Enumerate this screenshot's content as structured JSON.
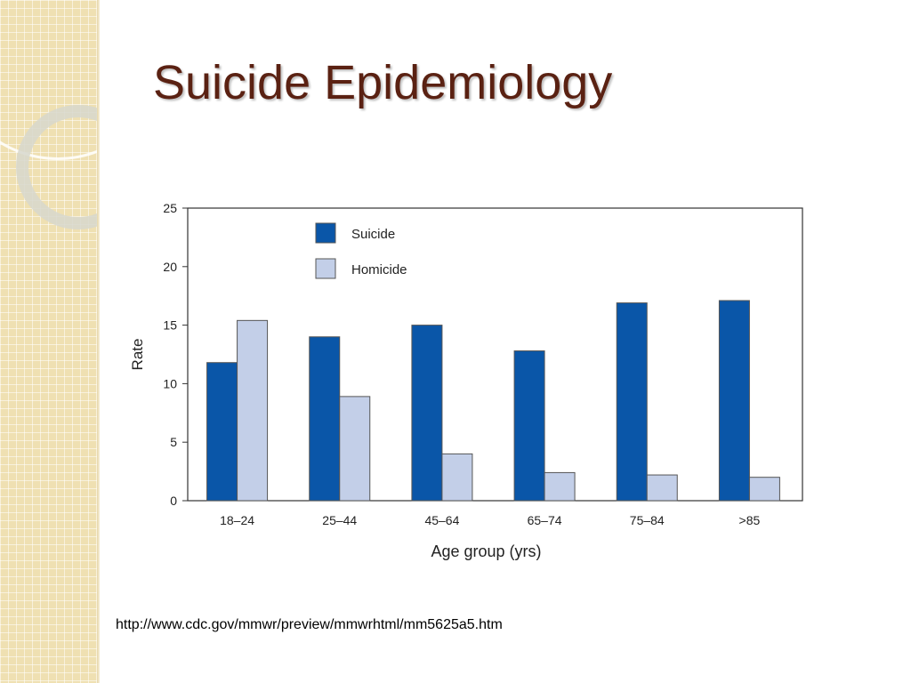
{
  "slide": {
    "title": "Suicide Epidemiology",
    "source_url": "http://www.cdc.gov/mmwr/preview/mmwrhtml/mm5625a5.htm"
  },
  "colors": {
    "title": "#5a2112",
    "suicide": "#0a56a8",
    "homicide": "#c3cfe8",
    "strip": "#efe0b2"
  },
  "chart_data": {
    "type": "bar",
    "xlabel": "Age group (yrs)",
    "ylabel": "Rate",
    "ylim": [
      0,
      25
    ],
    "yticks": [
      "0",
      "5",
      "10",
      "15",
      "20",
      "25"
    ],
    "categories": [
      "18–24",
      "25–44",
      "45–64",
      "65–74",
      "75–84",
      ">85"
    ],
    "series": [
      {
        "name": "Suicide",
        "values": [
          11.8,
          14.0,
          15.0,
          12.8,
          16.9,
          17.1
        ]
      },
      {
        "name": "Homicide",
        "values": [
          15.4,
          8.9,
          4.0,
          2.4,
          2.2,
          2.0
        ]
      }
    ],
    "legend_position": "top-left"
  }
}
